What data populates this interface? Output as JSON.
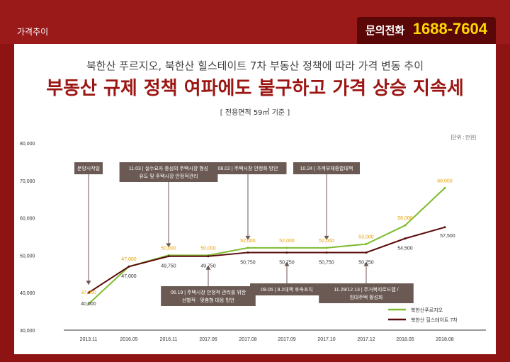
{
  "header": {
    "tab_label": "가격추이",
    "phone_label": "문의전화",
    "phone_number": "1688-7604"
  },
  "heading": {
    "subtitle": "북한산 푸르지오, 북한산 힐스테이트 7차 부동산 정책에 따라 가격 변동 추이",
    "title": "부동산 규제 정책 여파에도 불구하고 가격 상승 지속세",
    "area_note": "[ 전용면적 59㎡ 기준 ]"
  },
  "chart_data": {
    "type": "line",
    "unit_label": "[단위 : 만원]",
    "categories": [
      "2013.11",
      "2016.05",
      "2016.11",
      "2017.06",
      "2017.08",
      "2017.09",
      "2017.10",
      "2017.12",
      "2018.05",
      "2018.08"
    ],
    "ylim": [
      30000,
      80000
    ],
    "yticks": [
      "80,000",
      "70,000",
      "60,000",
      "50,000",
      "40,000",
      "30,000"
    ],
    "series": [
      {
        "name": "북한산푸르지오",
        "color": "#7dbb2f",
        "values": [
          37000,
          47000,
          50000,
          50000,
          52000,
          52000,
          52000,
          53000,
          58000,
          68000
        ],
        "labels": [
          "37,000",
          "47,000",
          "50,000",
          "50,000",
          "52,000",
          "52,000",
          "52,000",
          "53,000",
          "58,000",
          "68,000"
        ]
      },
      {
        "name": "북한산 힐스테이트 7차",
        "color": "#5a0c0c",
        "values": [
          40000,
          47000,
          49750,
          49750,
          50750,
          50750,
          50750,
          50750,
          54500,
          57500
        ],
        "labels": [
          "40,000",
          "47,000",
          "49,750",
          "49,750",
          "50,750",
          "50,750",
          "50,750",
          "50,750",
          "54,500",
          "57,500"
        ]
      }
    ],
    "annotations_top": [
      {
        "lines": [
          "분양시작일"
        ],
        "cat": 0
      },
      {
        "lines": [
          "11.03 | 실수요자 중심의 주택시장 형성",
          "유도 및 주택시장 안정적관리"
        ],
        "cat": 2
      },
      {
        "lines": [
          "08.02 | 주택시장 안정화 방안"
        ],
        "cat": 4
      },
      {
        "lines": [
          "10.24 | 가계부채종합대책"
        ],
        "cat": 6
      }
    ],
    "annotations_bottom": [
      {
        "lines": [
          "06.19 | 주택시장 안정적 관리를 위한",
          "선별적 · 맞춤형 대응 방안"
        ],
        "cat": 3
      },
      {
        "lines": [
          "09.05 | 8.2대책 후속조치"
        ],
        "cat": 5
      },
      {
        "lines": [
          "11.29/12.13 | 주거복지로드맵 /",
          "임대주택 활성화"
        ],
        "cat": 7
      }
    ]
  }
}
